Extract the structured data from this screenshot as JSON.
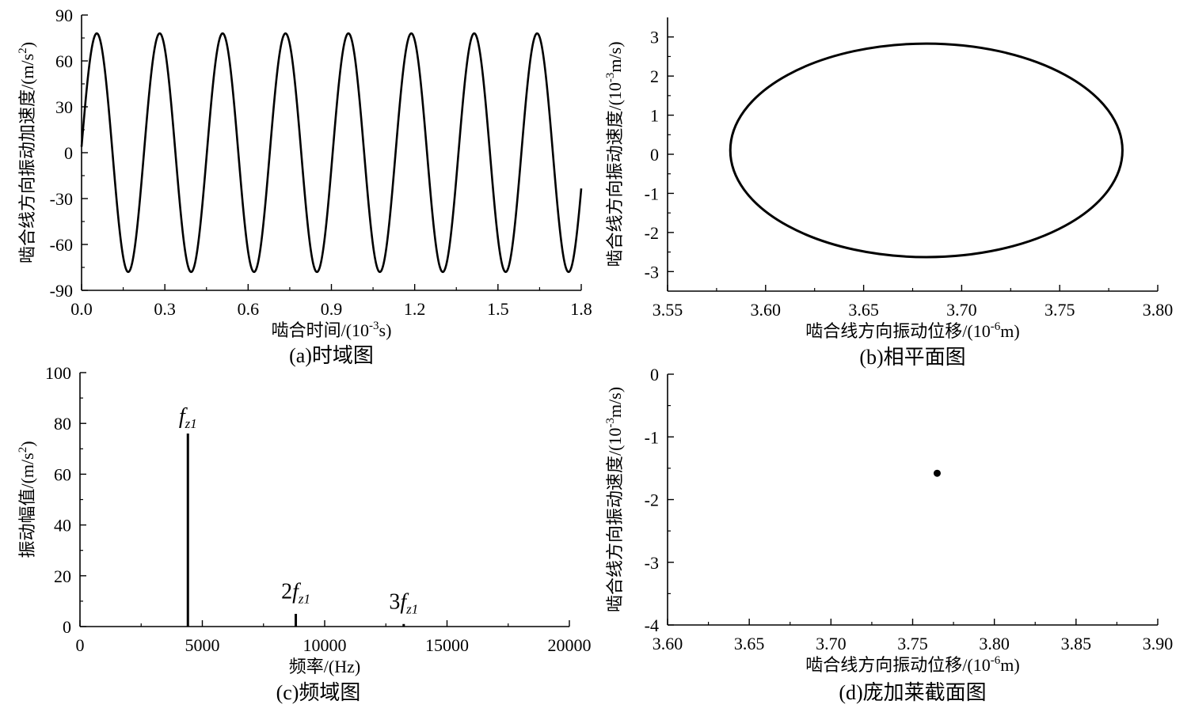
{
  "chart_data": [
    {
      "id": "a",
      "type": "line",
      "caption": "(a)时域图",
      "xlabel": "啮合时间/(10",
      "xlabel_sup": "-3",
      "xlabel_end": "s)",
      "ylabel": "啮合线方向振动加速度/(m/s",
      "ylabel_sup": "2",
      "ylabel_end": ")",
      "xlim": [
        0,
        1.8
      ],
      "ylim": [
        -90,
        90
      ],
      "xticks": [
        0.0,
        0.3,
        0.6,
        0.9,
        1.2,
        1.5,
        1.8
      ],
      "xtick_labels": [
        "0.0",
        "0.3",
        "0.6",
        "0.9",
        "1.2",
        "1.5",
        "1.8"
      ],
      "yticks": [
        -90,
        -60,
        -30,
        0,
        30,
        60,
        90
      ],
      "ytick_labels": [
        "-90",
        "-60",
        "-30",
        "0",
        "30",
        "60",
        "90"
      ],
      "series": [
        {
          "function": "sine",
          "amplitude": 78,
          "period": 0.2266,
          "phase_offset": 0.0018,
          "x_start": 0,
          "x_end": 1.8
        }
      ]
    },
    {
      "id": "b",
      "type": "line",
      "caption": "(b)相平面图",
      "xlabel": "啮合线方向振动位移/(10",
      "xlabel_sup": "-6",
      "xlabel_end": "m)",
      "ylabel": "啮合线方向振动速度/(10",
      "ylabel_sup": "-3",
      "ylabel_end": "m/s)",
      "xlim": [
        3.55,
        3.8
      ],
      "ylim": [
        -3.5,
        3.5
      ],
      "xticks": [
        3.55,
        3.6,
        3.65,
        3.7,
        3.75,
        3.8
      ],
      "xtick_labels": [
        "3.55",
        "3.60",
        "3.65",
        "3.70",
        "3.75",
        "3.80"
      ],
      "yticks": [
        -3,
        -2,
        -1,
        0,
        1,
        2,
        3
      ],
      "ytick_labels": [
        "-3",
        "-2",
        "-1",
        "0",
        "1",
        "2",
        "3"
      ],
      "series": [
        {
          "function": "ellipse",
          "center": [
            3.682,
            0.1
          ],
          "radius_x": 0.1,
          "radius_y": 2.73
        }
      ]
    },
    {
      "id": "c",
      "type": "bar",
      "caption": "(c)频域图",
      "xlabel": "频率/(Hz)",
      "ylabel": "振动幅值/(m/s",
      "ylabel_sup": "2",
      "ylabel_end": ")",
      "xlim": [
        0,
        20000
      ],
      "ylim": [
        0,
        100
      ],
      "xticks": [
        0,
        5000,
        10000,
        15000,
        20000
      ],
      "xtick_labels": [
        "0",
        "5000",
        "10000",
        "15000",
        "20000"
      ],
      "yticks": [
        0,
        20,
        40,
        60,
        80,
        100
      ],
      "ytick_labels": [
        "0",
        "20",
        "40",
        "60",
        "80",
        "100"
      ],
      "series": [
        {
          "x": [
            4410,
            8820,
            13230
          ],
          "values": [
            76,
            5,
            1
          ]
        }
      ],
      "annotations": [
        {
          "coef": "",
          "text": "f",
          "sub": "z1",
          "x": 4410,
          "y": 80
        },
        {
          "coef": "2",
          "text": "f",
          "sub": "z1",
          "x": 8820,
          "y": 11
        },
        {
          "coef": "3",
          "text": "f",
          "sub": "z1",
          "x": 13230,
          "y": 7
        }
      ]
    },
    {
      "id": "d",
      "type": "scatter",
      "caption": "(d)庞加莱截面图",
      "xlabel": "啮合线方向振动位移/(10",
      "xlabel_sup": "-6",
      "xlabel_end": "m)",
      "ylabel": "啮合线方向振动速度/(10",
      "ylabel_sup": "-3",
      "ylabel_end": "m/s)",
      "xlim": [
        3.6,
        3.9
      ],
      "ylim": [
        -4,
        0
      ],
      "xticks": [
        3.6,
        3.65,
        3.7,
        3.75,
        3.8,
        3.85,
        3.9
      ],
      "xtick_labels": [
        "3.60",
        "3.65",
        "3.70",
        "3.75",
        "3.80",
        "3.85",
        "3.90"
      ],
      "yticks": [
        -4,
        -3,
        -2,
        -1,
        0
      ],
      "ytick_labels": [
        "-4",
        "-3",
        "-2",
        "-1",
        "0"
      ],
      "series": [
        {
          "x": [
            3.765
          ],
          "y": [
            -1.58
          ]
        }
      ]
    }
  ]
}
